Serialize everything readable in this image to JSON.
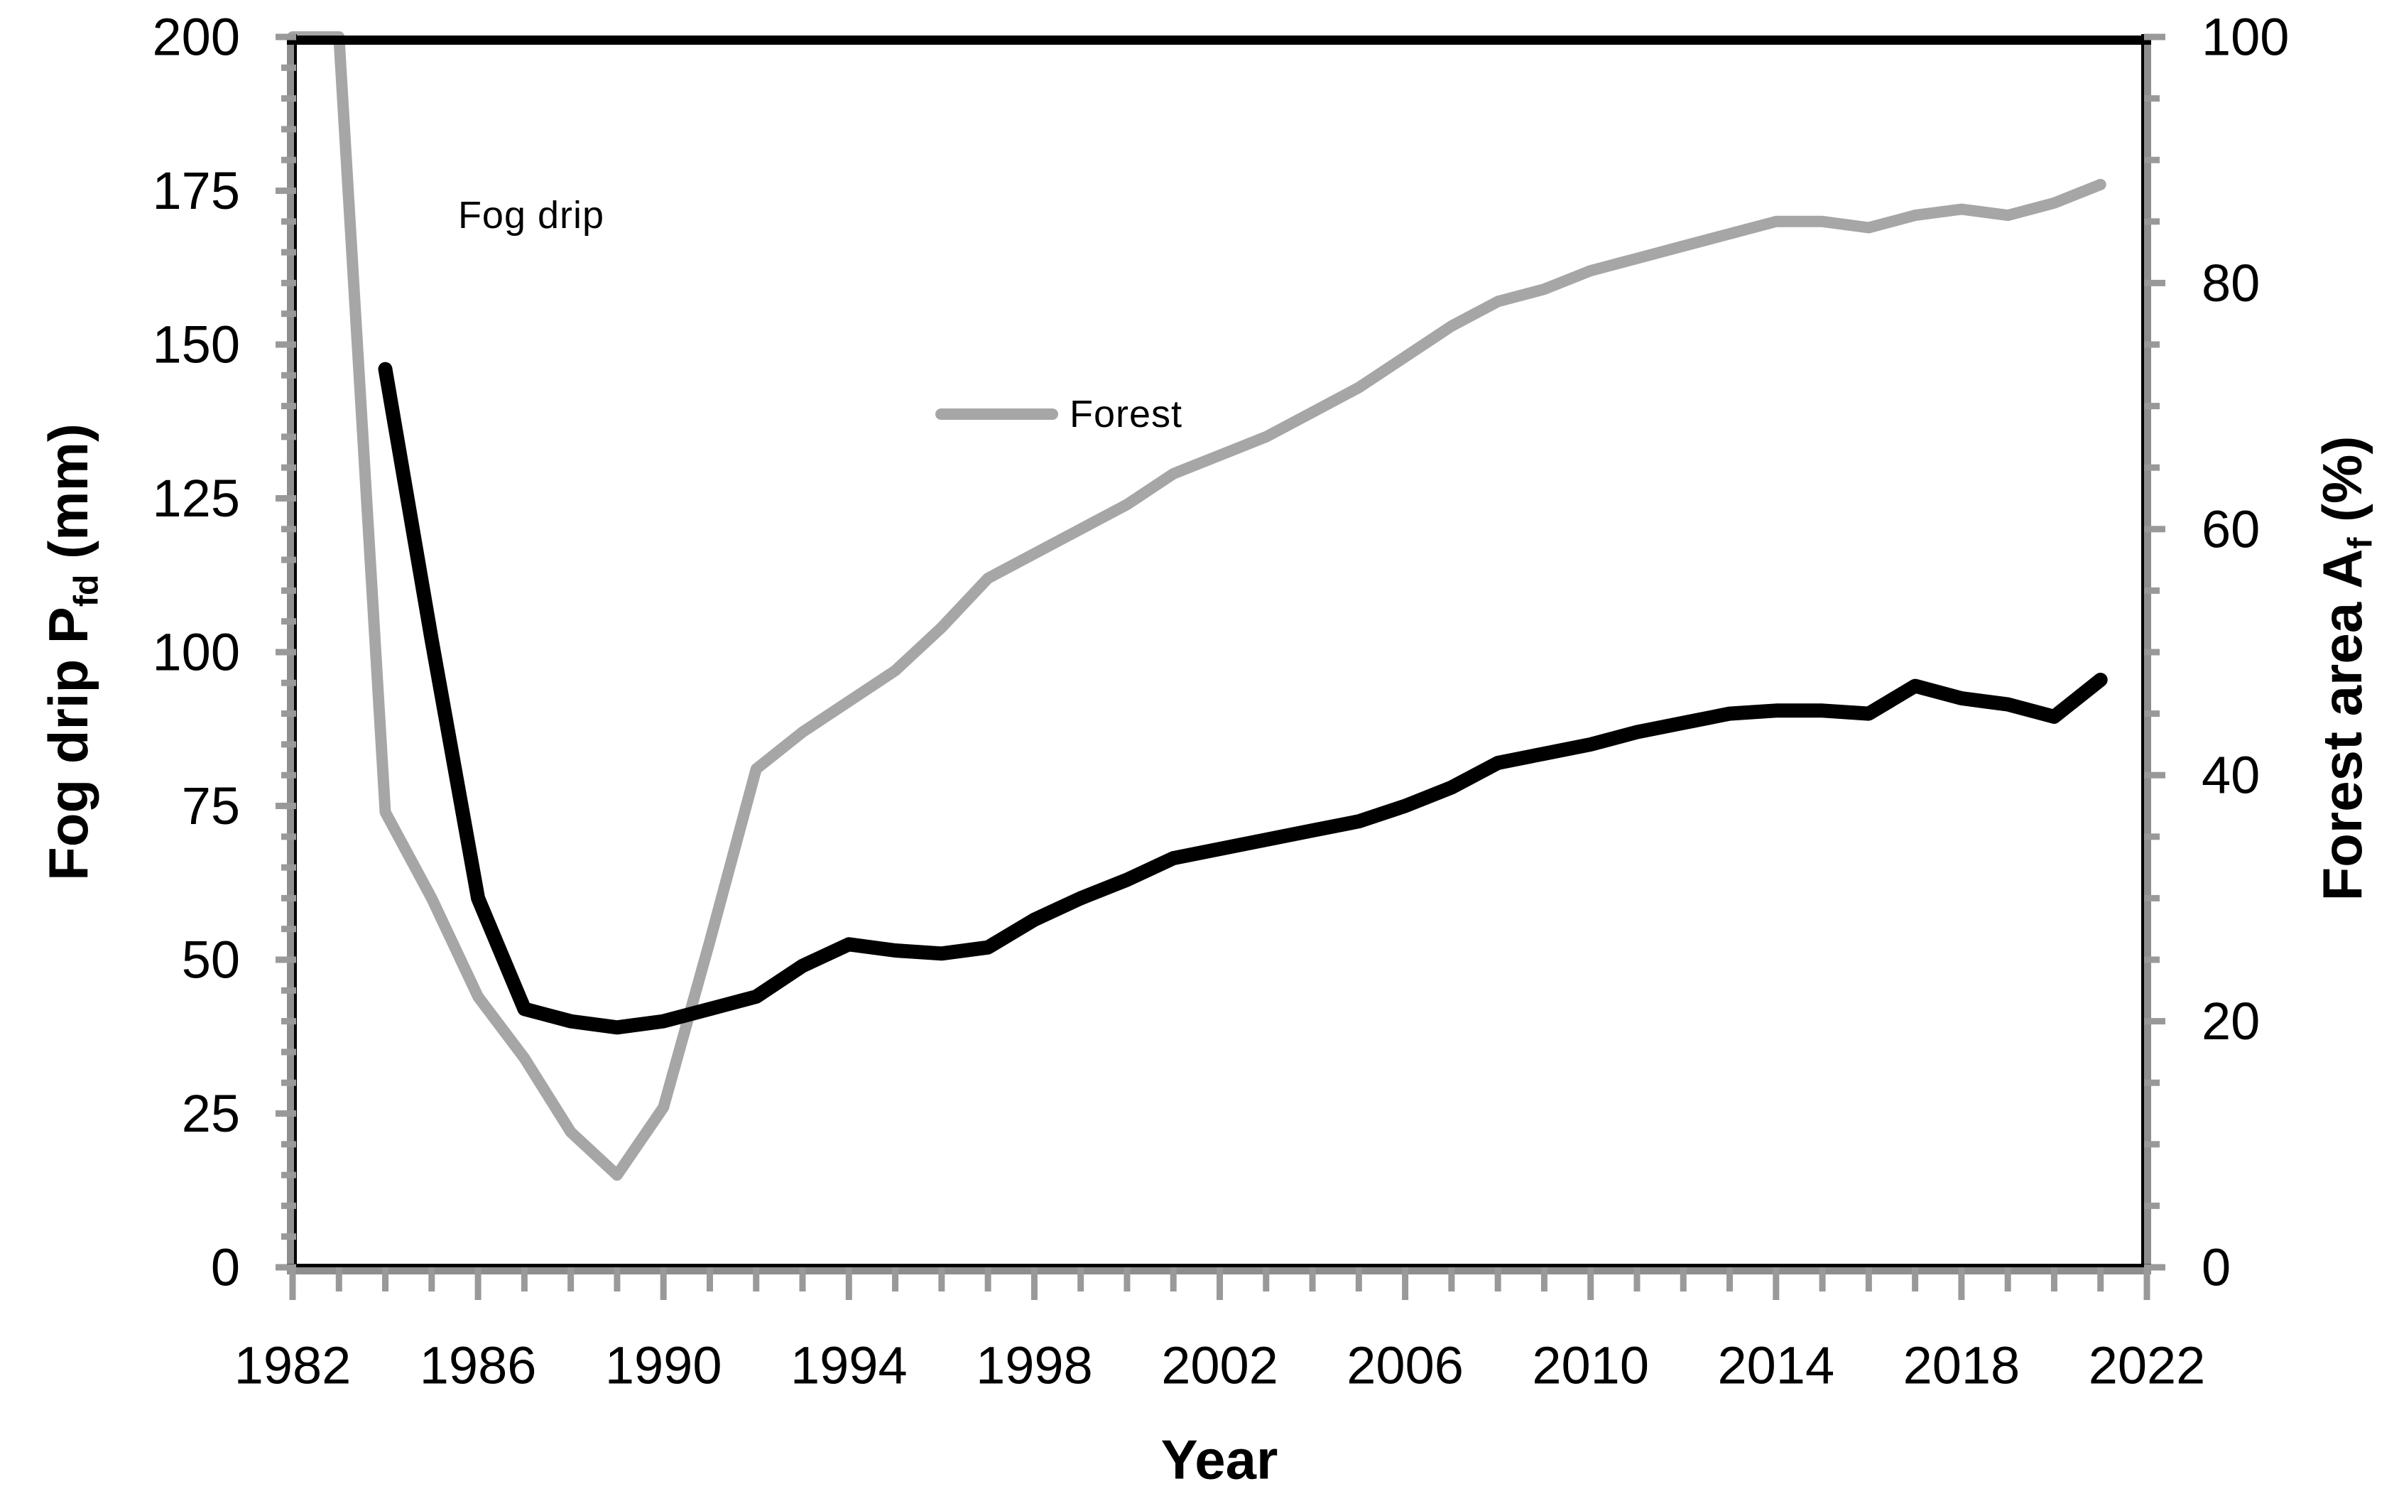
{
  "chart_data": {
    "type": "line",
    "title": "",
    "xlabel": "Year",
    "grid": false,
    "legend_position": "inside-plot annotations",
    "x_axis": {
      "range": [
        1982,
        2022
      ],
      "major_step": 4,
      "minor_step": 1,
      "tick_labels": [
        "1982",
        "1986",
        "1990",
        "1994",
        "1998",
        "2002",
        "2006",
        "2010",
        "2014",
        "2018",
        "2022"
      ]
    },
    "y_left_axis": {
      "title_pre": "Fog drip P",
      "title_sub": "fd",
      "title_post": " (mm)",
      "range": [
        0,
        200
      ],
      "major_step": 25,
      "minor_step": 5,
      "tick_labels": [
        "0",
        "25",
        "50",
        "75",
        "100",
        "125",
        "150",
        "175",
        "200"
      ]
    },
    "y_right_axis": {
      "title_pre": "Forest area A",
      "title_sub": "f",
      "title_post": " (%)",
      "range": [
        0,
        100
      ],
      "major_step": 20,
      "minor_step": 5,
      "tick_labels": [
        "0",
        "20",
        "40",
        "60",
        "80",
        "100"
      ]
    },
    "legend": {
      "fog_drip_label": "Fog drip",
      "forest_label": "Forest"
    },
    "series": [
      {
        "name": "Forest",
        "axis": "right",
        "color": "#a6a6a6",
        "stroke_width": 16,
        "points": [
          [
            1982,
            100
          ],
          [
            1983,
            100
          ],
          [
            1984,
            37
          ],
          [
            1985,
            30
          ],
          [
            1986,
            22
          ],
          [
            1987,
            17
          ],
          [
            1988,
            11
          ],
          [
            1989,
            7.5
          ],
          [
            1990,
            13
          ],
          [
            1991,
            26.5
          ],
          [
            1992,
            40.5
          ],
          [
            1993,
            43.5
          ],
          [
            1994,
            46
          ],
          [
            1995,
            48.5
          ],
          [
            1996,
            52
          ],
          [
            1997,
            56
          ],
          [
            1998,
            58
          ],
          [
            1999,
            60
          ],
          [
            2000,
            62
          ],
          [
            2001,
            64.5
          ],
          [
            2002,
            66
          ],
          [
            2003,
            67.5
          ],
          [
            2004,
            69.5
          ],
          [
            2005,
            71.5
          ],
          [
            2006,
            74
          ],
          [
            2007,
            76.5
          ],
          [
            2008,
            78.5
          ],
          [
            2009,
            79.5
          ],
          [
            2010,
            81
          ],
          [
            2011,
            82
          ],
          [
            2012,
            83
          ],
          [
            2013,
            84
          ],
          [
            2014,
            85
          ],
          [
            2015,
            85
          ],
          [
            2016,
            84.5
          ],
          [
            2017,
            85.5
          ],
          [
            2018,
            86
          ],
          [
            2019,
            85.5
          ],
          [
            2020,
            86.5
          ],
          [
            2021,
            88
          ]
        ]
      },
      {
        "name": "Fog drip",
        "axis": "left",
        "color": "#000000",
        "stroke_width": 20,
        "points": [
          [
            1984,
            146
          ],
          [
            1985,
            102
          ],
          [
            1986,
            60
          ],
          [
            1987,
            42
          ],
          [
            1988,
            40
          ],
          [
            1989,
            39
          ],
          [
            1990,
            40
          ],
          [
            1991,
            42
          ],
          [
            1992,
            44
          ],
          [
            1993,
            49
          ],
          [
            1994,
            52.5
          ],
          [
            1995,
            51.5
          ],
          [
            1996,
            51
          ],
          [
            1997,
            52
          ],
          [
            1998,
            56.5
          ],
          [
            1999,
            60
          ],
          [
            2000,
            63
          ],
          [
            2001,
            66.5
          ],
          [
            2002,
            68
          ],
          [
            2003,
            69.5
          ],
          [
            2004,
            71
          ],
          [
            2005,
            72.5
          ],
          [
            2006,
            75
          ],
          [
            2007,
            78
          ],
          [
            2008,
            82
          ],
          [
            2009,
            83.5
          ],
          [
            2010,
            85
          ],
          [
            2011,
            87
          ],
          [
            2012,
            88.5
          ],
          [
            2013,
            90
          ],
          [
            2014,
            90.5
          ],
          [
            2015,
            90.5
          ],
          [
            2016,
            90
          ],
          [
            2017,
            94.5
          ],
          [
            2018,
            92.5
          ],
          [
            2019,
            91.5
          ],
          [
            2020,
            89.5
          ],
          [
            2021,
            95.5
          ]
        ]
      }
    ],
    "colors": {
      "axis_gray": "#8e8e8e",
      "tick_gray": "#999999",
      "border_black": "#000000",
      "label_black": "#000000",
      "background": "#ffffff"
    },
    "layout": {
      "plot_left": 412,
      "plot_right": 3023,
      "plot_top": 52,
      "plot_bottom": 1784,
      "tick_label_font": 74,
      "y_left_label_x": 338,
      "y_right_label_x": 3100,
      "x_label_center_y": 1922
    }
  }
}
